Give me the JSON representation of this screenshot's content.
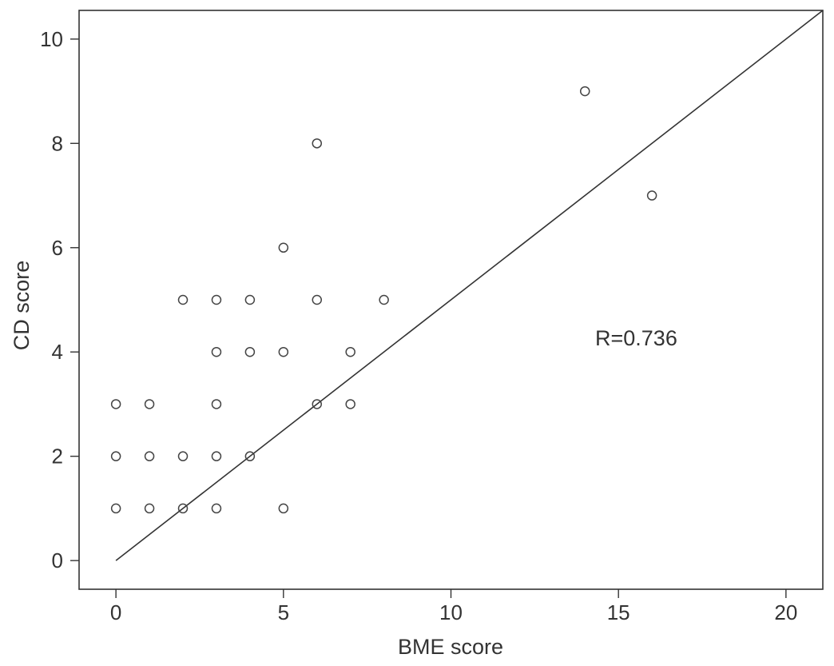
{
  "chart_data": {
    "type": "scatter",
    "title": "",
    "xlabel": "BME score",
    "ylabel": "CD score",
    "xlim": [
      -1.1,
      21.1
    ],
    "ylim": [
      -0.55,
      10.55
    ],
    "xticks": [
      0,
      5,
      10,
      15,
      20
    ],
    "yticks": [
      0,
      2,
      4,
      6,
      8,
      10
    ],
    "grid": false,
    "annotation": "R=0.736",
    "reference_line": {
      "from": [
        0,
        0
      ],
      "to": [
        21.1,
        10.55
      ]
    },
    "points": [
      {
        "x": 0,
        "y": 1
      },
      {
        "x": 0,
        "y": 2
      },
      {
        "x": 0,
        "y": 3
      },
      {
        "x": 1,
        "y": 1
      },
      {
        "x": 1,
        "y": 2
      },
      {
        "x": 1,
        "y": 3
      },
      {
        "x": 2,
        "y": 1
      },
      {
        "x": 2,
        "y": 2
      },
      {
        "x": 2,
        "y": 5
      },
      {
        "x": 3,
        "y": 1
      },
      {
        "x": 3,
        "y": 2
      },
      {
        "x": 3,
        "y": 3
      },
      {
        "x": 3,
        "y": 4
      },
      {
        "x": 3,
        "y": 5
      },
      {
        "x": 4,
        "y": 2
      },
      {
        "x": 4,
        "y": 4
      },
      {
        "x": 4,
        "y": 5
      },
      {
        "x": 5,
        "y": 1
      },
      {
        "x": 5,
        "y": 4
      },
      {
        "x": 5,
        "y": 6
      },
      {
        "x": 6,
        "y": 3
      },
      {
        "x": 6,
        "y": 5
      },
      {
        "x": 6,
        "y": 8
      },
      {
        "x": 7,
        "y": 3
      },
      {
        "x": 7,
        "y": 4
      },
      {
        "x": 8,
        "y": 5
      },
      {
        "x": 14,
        "y": 9
      },
      {
        "x": 16,
        "y": 7
      }
    ]
  },
  "colors": {
    "axis": "#333333",
    "marker": "#444444",
    "line": "#333333"
  }
}
